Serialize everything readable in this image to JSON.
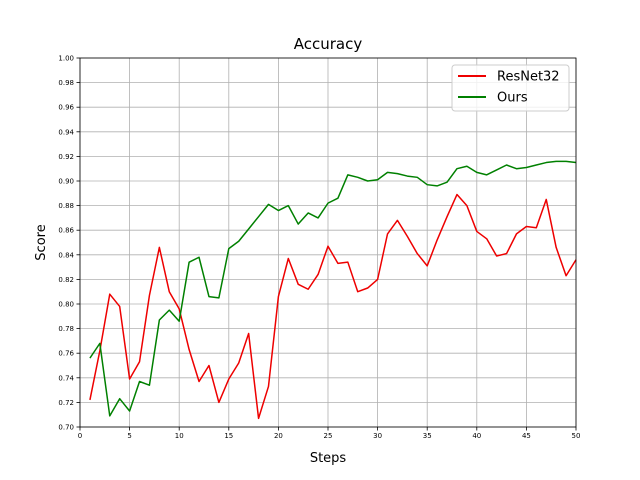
{
  "chart_data": {
    "type": "line",
    "title": "Accuracy",
    "xlabel": "Steps",
    "ylabel": "Score",
    "xlim": [
      0,
      50
    ],
    "ylim": [
      0.7,
      1.0
    ],
    "x_ticks": [
      0,
      5,
      10,
      15,
      20,
      25,
      30,
      35,
      40,
      45,
      50
    ],
    "y_ticks": [
      0.7,
      0.72,
      0.74,
      0.76,
      0.78,
      0.8,
      0.82,
      0.84,
      0.86,
      0.88,
      0.9,
      0.92,
      0.94,
      0.96,
      0.98,
      1.0
    ],
    "x_tick_labels": [
      "0",
      "5",
      "10",
      "15",
      "20",
      "25",
      "30",
      "35",
      "40",
      "45",
      "50"
    ],
    "y_tick_labels": [
      "0.70",
      "0.72",
      "0.74",
      "0.76",
      "0.78",
      "0.80",
      "0.82",
      "0.84",
      "0.86",
      "0.88",
      "0.90",
      "0.92",
      "0.94",
      "0.96",
      "0.98",
      "1.00"
    ],
    "grid": true,
    "legend_position": "top-right",
    "x": [
      1,
      2,
      3,
      4,
      5,
      6,
      7,
      8,
      9,
      10,
      11,
      12,
      13,
      14,
      15,
      16,
      17,
      18,
      19,
      20,
      21,
      22,
      23,
      24,
      25,
      26,
      27,
      28,
      29,
      30,
      31,
      32,
      33,
      34,
      35,
      36,
      37,
      38,
      39,
      40,
      41,
      42,
      43,
      44,
      45,
      46,
      47,
      48,
      49,
      50
    ],
    "series": [
      {
        "name": "ResNet32",
        "color": "#ee0000",
        "values": [
          0.722,
          0.762,
          0.808,
          0.798,
          0.739,
          0.753,
          0.807,
          0.846,
          0.81,
          0.796,
          0.763,
          0.737,
          0.75,
          0.72,
          0.739,
          0.752,
          0.776,
          0.707,
          0.733,
          0.806,
          0.837,
          0.816,
          0.812,
          0.824,
          0.847,
          0.833,
          0.834,
          0.81,
          0.813,
          0.82,
          0.857,
          0.868,
          0.855,
          0.841,
          0.831,
          0.852,
          0.871,
          0.889,
          0.88,
          0.859,
          0.853,
          0.839,
          0.841,
          0.857,
          0.863,
          0.862,
          0.885,
          0.846,
          0.823,
          0.836
        ]
      },
      {
        "name": "Ours",
        "color": "#008000",
        "values": [
          0.756,
          0.768,
          0.709,
          0.723,
          0.713,
          0.737,
          0.734,
          0.787,
          0.795,
          0.786,
          0.834,
          0.838,
          0.806,
          0.805,
          0.845,
          0.851,
          0.861,
          0.871,
          0.881,
          0.876,
          0.88,
          0.865,
          0.874,
          0.87,
          0.882,
          0.886,
          0.905,
          0.903,
          0.9,
          0.901,
          0.907,
          0.906,
          0.904,
          0.903,
          0.897,
          0.896,
          0.899,
          0.91,
          0.912,
          0.907,
          0.905,
          0.909,
          0.913,
          0.91,
          0.911,
          0.913,
          0.915,
          0.916,
          0.916,
          0.915
        ]
      }
    ]
  }
}
